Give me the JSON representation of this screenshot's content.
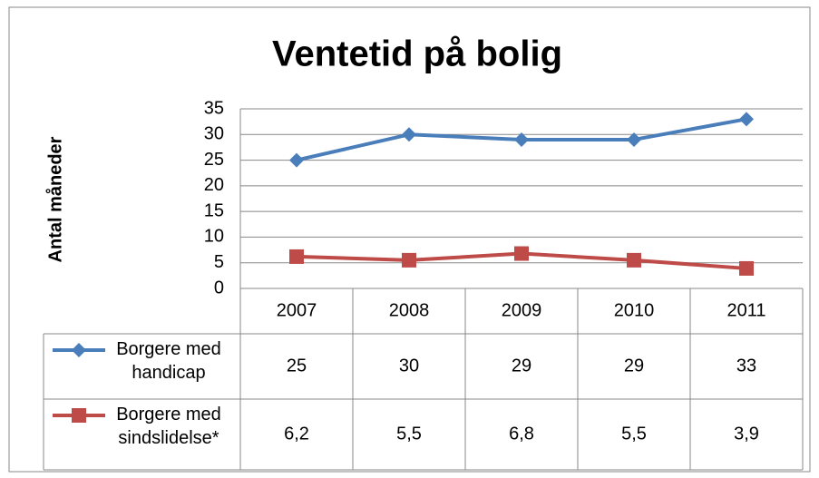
{
  "chart_data": {
    "type": "line",
    "title": "Ventetid på bolig",
    "y_label": "Antal måneder",
    "categories": [
      "2007",
      "2008",
      "2009",
      "2010",
      "2011"
    ],
    "series": [
      {
        "name": "Borgere med handicap",
        "color": "#4a7ebb",
        "marker": "diamond",
        "values": [
          25,
          30,
          29,
          29,
          33
        ]
      },
      {
        "name": "Borgere med sindslidelse*",
        "color": "#be4b48",
        "marker": "square",
        "values": [
          6.2,
          5.5,
          6.8,
          5.5,
          3.9
        ],
        "value_labels": [
          "6,2",
          "5,5",
          "6,8",
          "5,5",
          "3,9"
        ]
      }
    ],
    "ylim": [
      0,
      35
    ],
    "yticks": [
      0,
      5,
      10,
      15,
      20,
      25,
      30,
      35
    ],
    "grid": true,
    "data_table": true
  }
}
